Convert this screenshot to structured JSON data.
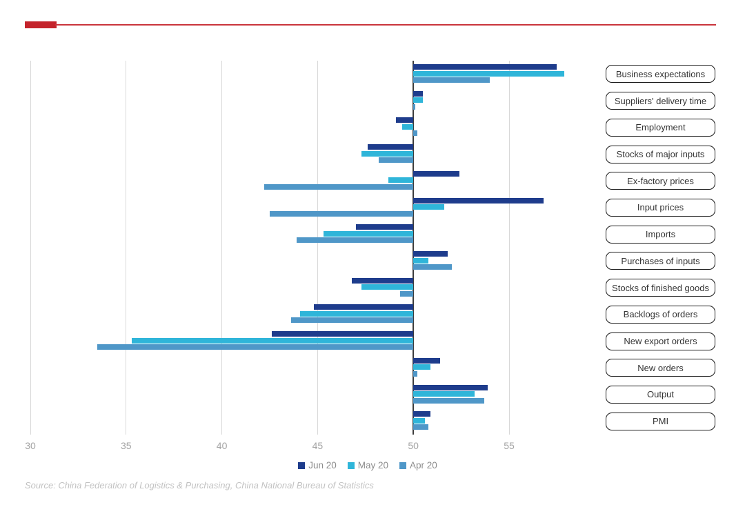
{
  "header": {
    "accent_bar_color": "#c4232b",
    "rule_color": "#c9343b"
  },
  "chart_data": {
    "type": "bar",
    "orientation": "horizontal",
    "title": "",
    "baseline": 50,
    "axis": {
      "min": 30,
      "max": 58.4,
      "ticks": [
        "30",
        "35",
        "40",
        "45",
        "50",
        "55"
      ],
      "tick_values": [
        30,
        35,
        40,
        45,
        50,
        55
      ]
    },
    "grid": true,
    "gridline_color": "#d8d8d8",
    "baseline_color": "#3d3d3d",
    "legend_position": "bottom",
    "categories": [
      "Business expectations",
      "Suppliers' delivery time",
      "Employment",
      "Stocks of major inputs",
      "Ex-factory prices",
      "Input prices",
      "Imports",
      "Purchases of inputs",
      "Stocks of finished goods",
      "Backlogs of orders",
      "New export orders",
      "New orders",
      "Output",
      "PMI"
    ],
    "series": [
      {
        "name": "Jun 20",
        "color": "#1e3c8c",
        "values": [
          57.5,
          50.5,
          49.1,
          47.6,
          52.4,
          56.8,
          47.0,
          51.8,
          46.8,
          44.8,
          42.6,
          51.4,
          53.9,
          50.9
        ]
      },
      {
        "name": "May 20",
        "color": "#2fb5d9",
        "values": [
          57.9,
          50.5,
          49.4,
          47.3,
          48.7,
          51.6,
          45.3,
          50.8,
          47.3,
          44.1,
          35.3,
          50.9,
          53.2,
          50.6
        ]
      },
      {
        "name": "Apr 20",
        "color": "#4f97c8",
        "values": [
          54.0,
          50.1,
          50.2,
          48.2,
          42.2,
          42.5,
          43.9,
          52.0,
          49.3,
          43.6,
          33.5,
          50.2,
          53.7,
          50.8
        ]
      }
    ],
    "source": "Source: China Federation of Logistics & Purchasing, China National Bureau of Statistics"
  },
  "styles": {
    "tick_label_color": "#a3a3a3",
    "legend_text_color": "#8c8c8c",
    "source_text_color": "#c2c2c2",
    "label_box_border": "#1a1a1a",
    "label_box_text": "#333333"
  }
}
